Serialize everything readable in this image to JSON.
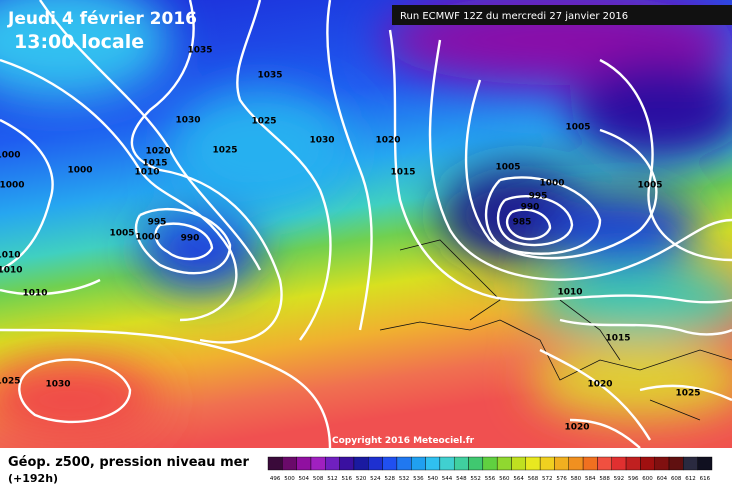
{
  "header": {
    "date": "Jeudi 4 février 2016",
    "time": "13:00 locale",
    "run": "Run ECMWF 12Z du mercredi 27 janvier 2016"
  },
  "footer": {
    "title": "Géop. z500, pression niveau mer",
    "lead": "(+192h)",
    "copyright": "Copyright 2016 Meteociel.fr"
  },
  "isobar_labels": [
    "1035",
    "1035",
    "1030",
    "1025",
    "1030",
    "1025",
    "1020",
    "1015",
    "1010",
    "1000",
    "1000",
    "1000",
    "995",
    "990",
    "1000",
    "1005",
    "1010",
    "1010",
    "1010",
    "1020",
    "1015",
    "1005",
    "1005",
    "1000",
    "995",
    "990",
    "985",
    "1005",
    "1010",
    "1015",
    "1020",
    "1025",
    "1020",
    "1030",
    "1025"
  ],
  "colorbar": {
    "labels": [
      "496",
      "500",
      "504",
      "508",
      "512",
      "516",
      "520",
      "524",
      "528",
      "532",
      "536",
      "540",
      "544",
      "548",
      "552",
      "556",
      "560",
      "564",
      "568",
      "572",
      "576",
      "580",
      "584",
      "588",
      "592",
      "596",
      "600",
      "604",
      "608",
      "612",
      "616"
    ],
    "colors": [
      "#3a0a3a",
      "#6a0a6a",
      "#9010a0",
      "#a020c0",
      "#7020c0",
      "#3a10a0",
      "#1a1aa0",
      "#1e30d0",
      "#2050f0",
      "#2078f0",
      "#20a0f0",
      "#30c0f0",
      "#40d0d0",
      "#40d0a0",
      "#40c870",
      "#60d040",
      "#90d830",
      "#c0e020",
      "#e8e820",
      "#f0d020",
      "#f0b020",
      "#f09020",
      "#f07020",
      "#f05040",
      "#e03030",
      "#c02020",
      "#a01010",
      "#801010",
      "#601010",
      "#2a2a40",
      "#101020"
    ]
  }
}
